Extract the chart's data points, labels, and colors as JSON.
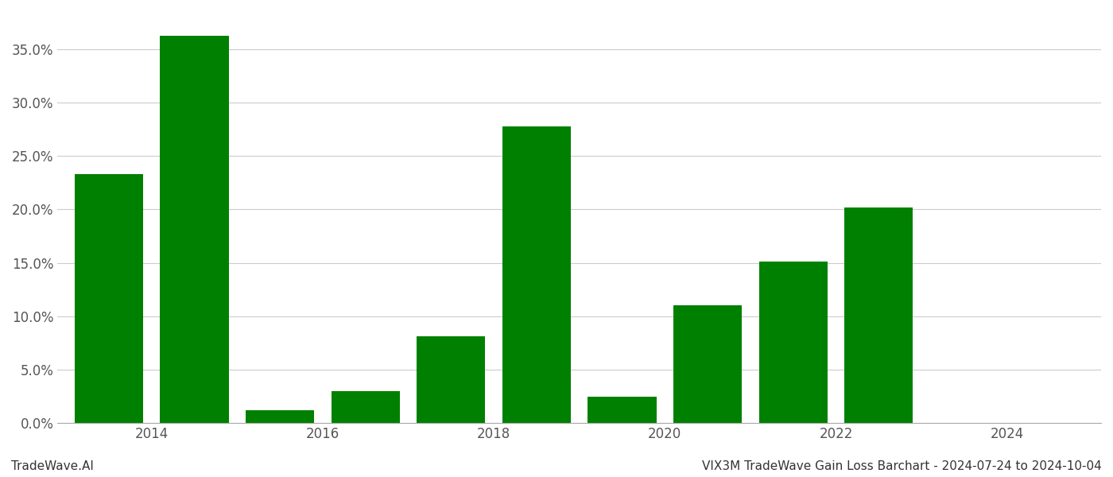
{
  "bar_positions": [
    2013,
    2014,
    2015,
    2016,
    2017,
    2018,
    2019,
    2020,
    2021,
    2022
  ],
  "values": [
    0.233,
    0.363,
    0.012,
    0.03,
    0.081,
    0.278,
    0.025,
    0.11,
    0.151,
    0.202
  ],
  "bar_color": "#008000",
  "background_color": "#ffffff",
  "grid_color": "#cccccc",
  "ylim": [
    0,
    0.385
  ],
  "yticks": [
    0.0,
    0.05,
    0.1,
    0.15,
    0.2,
    0.25,
    0.3,
    0.35
  ],
  "xtick_positions": [
    2013.5,
    2015.5,
    2017.5,
    2019.5,
    2021.5,
    2023.5
  ],
  "xtick_labels": [
    "2014",
    "2016",
    "2018",
    "2020",
    "2022",
    "2024"
  ],
  "xlim": [
    2012.4,
    2024.6
  ],
  "footer_left": "TradeWave.AI",
  "footer_right": "VIX3M TradeWave Gain Loss Barchart - 2024-07-24 to 2024-10-04",
  "bar_width": 0.8,
  "footer_fontsize": 11,
  "tick_fontsize": 12
}
